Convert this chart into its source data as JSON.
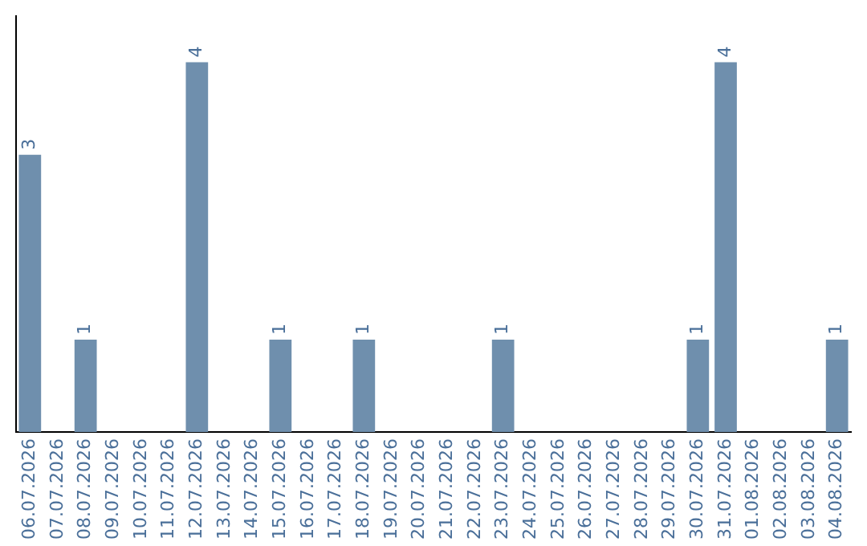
{
  "chart_data": {
    "type": "bar",
    "categories": [
      "06.07.2026",
      "07.07.2026",
      "08.07.2026",
      "09.07.2026",
      "10.07.2026",
      "11.07.2026",
      "12.07.2026",
      "13.07.2026",
      "14.07.2026",
      "15.07.2026",
      "16.07.2026",
      "17.07.2026",
      "18.07.2026",
      "19.07.2026",
      "20.07.2026",
      "21.07.2026",
      "22.07.2026",
      "23.07.2026",
      "24.07.2026",
      "25.07.2026",
      "26.07.2026",
      "27.07.2026",
      "28.07.2026",
      "29.07.2026",
      "30.07.2026",
      "31.07.2026",
      "01.08.2026",
      "02.08.2026",
      "03.08.2026",
      "04.08.2026"
    ],
    "values": [
      3,
      0,
      1,
      0,
      0,
      0,
      4,
      0,
      0,
      1,
      0,
      0,
      1,
      0,
      0,
      0,
      0,
      1,
      0,
      0,
      0,
      0,
      0,
      0,
      1,
      4,
      0,
      0,
      0,
      1
    ],
    "value_labels": [
      "3",
      null,
      "1",
      null,
      null,
      null,
      "4",
      null,
      null,
      "1",
      null,
      null,
      "1",
      null,
      null,
      null,
      null,
      "1",
      null,
      null,
      null,
      null,
      null,
      null,
      "1",
      "4",
      null,
      null,
      null,
      "1"
    ],
    "color": "#6f8fad",
    "grid": false,
    "tick_labels": "x"
  }
}
